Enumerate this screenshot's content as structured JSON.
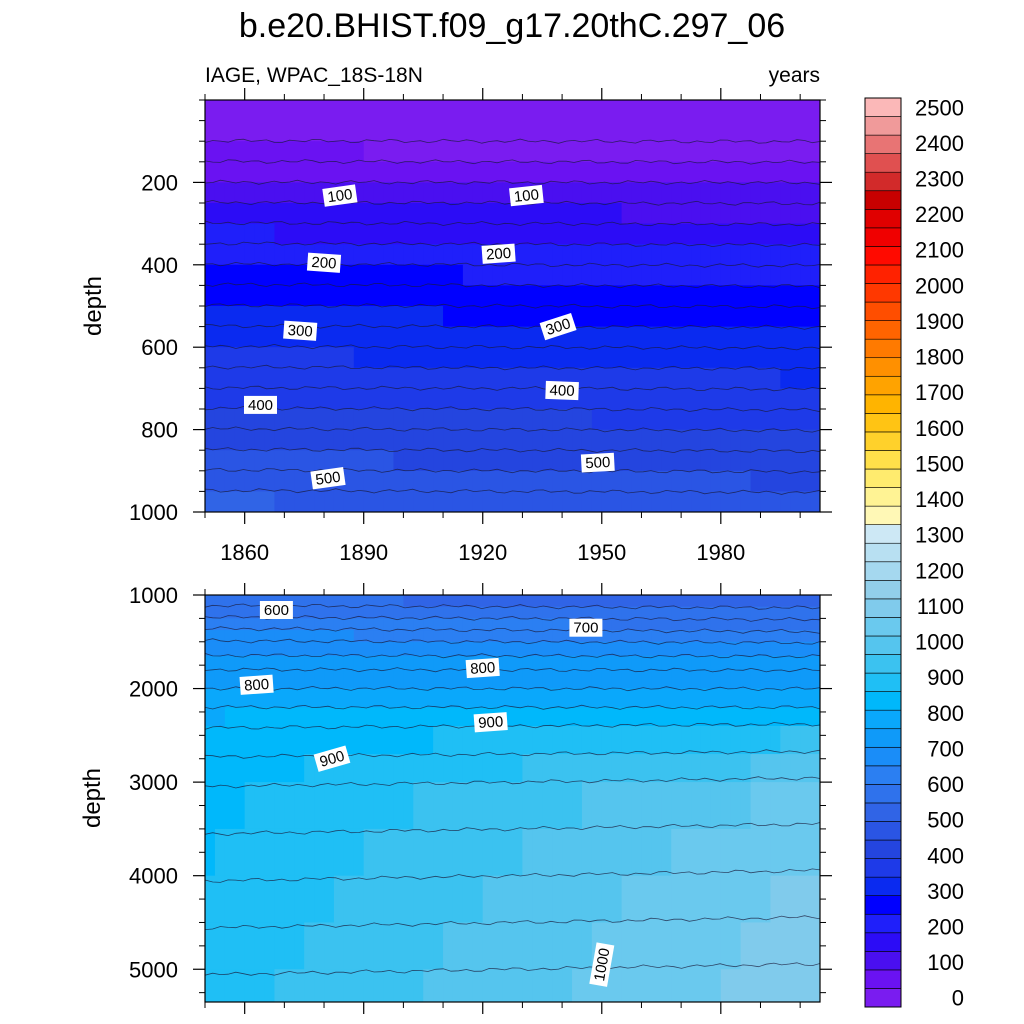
{
  "chart_data": {
    "type": "contour",
    "title": "b.e20.BHIST.f09_g17.20thC.297_06",
    "left_string": "IAGE, WPAC_18S-18N",
    "right_string": "years",
    "ylabel": "depth",
    "x": {
      "range": [
        1850,
        2005
      ],
      "tick_values": [
        1860,
        1890,
        1920,
        1950,
        1980
      ],
      "tick_labels": [
        "1860",
        "1890",
        "1920",
        "1950",
        "1980"
      ]
    },
    "panels": [
      {
        "name": "upper",
        "yrange": [
          0,
          1000
        ],
        "y_ticks": [
          200,
          400,
          600,
          800,
          1000
        ],
        "y_tick_labels": [
          "200",
          "400",
          "600",
          "800",
          "1000"
        ],
        "depth_levels": [
          0,
          100,
          150,
          200,
          250,
          300,
          350,
          400,
          450,
          500,
          550,
          600,
          650,
          700,
          750,
          800,
          850,
          900,
          950,
          1000
        ],
        "age_1850": [
          0,
          35,
          75,
          110,
          150,
          190,
          225,
          255,
          285,
          305,
          330,
          355,
          375,
          395,
          420,
          440,
          460,
          480,
          505,
          525
        ],
        "age_2005": [
          0,
          20,
          60,
          100,
          130,
          160,
          190,
          220,
          250,
          275,
          300,
          320,
          345,
          365,
          385,
          405,
          425,
          445,
          465,
          480
        ],
        "contour_labels": [
          {
            "text": "100",
            "year": 1884,
            "depth": 232,
            "angle": -8
          },
          {
            "text": "100",
            "year": 1931,
            "depth": 232,
            "angle": -6
          },
          {
            "text": "200",
            "year": 1880,
            "depth": 395,
            "angle": 4
          },
          {
            "text": "200",
            "year": 1924,
            "depth": 373,
            "angle": -4
          },
          {
            "text": "300",
            "year": 1874,
            "depth": 560,
            "angle": 4
          },
          {
            "text": "300",
            "year": 1939,
            "depth": 550,
            "angle": -18
          },
          {
            "text": "400",
            "year": 1864,
            "depth": 740,
            "angle": 0
          },
          {
            "text": "400",
            "year": 1940,
            "depth": 705,
            "angle": 2
          },
          {
            "text": "500",
            "year": 1881,
            "depth": 918,
            "angle": -8
          },
          {
            "text": "500",
            "year": 1949,
            "depth": 880,
            "angle": -3
          }
        ]
      },
      {
        "name": "lower",
        "yrange": [
          1000,
          5350
        ],
        "y_ticks": [
          1000,
          2000,
          3000,
          4000,
          5000
        ],
        "y_tick_labels": [
          "1000",
          "2000",
          "3000",
          "4000",
          "5000"
        ],
        "depth_levels": [
          1000,
          1125,
          1250,
          1375,
          1500,
          1650,
          1800,
          2000,
          2200,
          2400,
          2700,
          3000,
          3500,
          4000,
          4500,
          5000,
          5350
        ],
        "age_1850": [
          550,
          595,
          630,
          660,
          690,
          720,
          750,
          780,
          805,
          825,
          840,
          850,
          860,
          870,
          880,
          890,
          895
        ],
        "age_2005": [
          525,
          550,
          580,
          600,
          650,
          700,
          735,
          770,
          800,
          900,
          950,
          1020,
          1060,
          1080,
          1095,
          1105,
          1110
        ],
        "contour_labels": [
          {
            "text": "600",
            "year": 1868,
            "depth": 1160,
            "angle": 0
          },
          {
            "text": "700",
            "year": 1946,
            "depth": 1350,
            "angle": 0
          },
          {
            "text": "800",
            "year": 1863,
            "depth": 1960,
            "angle": -4
          },
          {
            "text": "800",
            "year": 1920,
            "depth": 1780,
            "angle": -4
          },
          {
            "text": "900",
            "year": 1882,
            "depth": 2750,
            "angle": -16
          },
          {
            "text": "900",
            "year": 1922,
            "depth": 2360,
            "angle": -4
          },
          {
            "text": "1000",
            "year": 1950,
            "depth": 4950,
            "angle": -80
          }
        ]
      }
    ],
    "colorbar": {
      "levels": [
        0,
        100,
        200,
        300,
        400,
        500,
        600,
        700,
        800,
        900,
        1000,
        1100,
        1200,
        1300,
        1400,
        1500,
        1600,
        1700,
        1800,
        1900,
        2000,
        2100,
        2200,
        2300,
        2400,
        2500
      ],
      "labels": [
        "0",
        "100",
        "200",
        "300",
        "400",
        "500",
        "600",
        "700",
        "800",
        "900",
        "1000",
        "1100",
        "1200",
        "1300",
        "1400",
        "1500",
        "1600",
        "1700",
        "1800",
        "1900",
        "2000",
        "2100",
        "2200",
        "2300",
        "2400",
        "2500"
      ],
      "colors_bottom_to_top": [
        "#7a1cf0",
        "#6a12f2",
        "#4a0ff0",
        "#2c0cf6",
        "#1f1ffa",
        "#0000ff",
        "#0a2af0",
        "#1e3ae8",
        "#2445df",
        "#2a55e4",
        "#3064e6",
        "#2f72ec",
        "#2b7ff2",
        "#1a8df8",
        "#0f9af9",
        "#0aa8fb",
        "#00b8fb",
        "#1fbff5",
        "#3bc2f0",
        "#55c5ee",
        "#6ac9ee",
        "#80cbec",
        "#92cfea",
        "#a5d8ef",
        "#b8e0f2",
        "#cde8f5",
        "#fff8b6",
        "#fff394",
        "#ffeb6e",
        "#ffe04a",
        "#ffd12b",
        "#ffc414",
        "#ffb400",
        "#ffa300",
        "#ff9000",
        "#ff7a00",
        "#ff6400",
        "#ff4e00",
        "#ff3800",
        "#ff2200",
        "#ff0a00",
        "#f00000",
        "#e00000",
        "#c80000",
        "#d22a2a",
        "#e05050",
        "#e87474",
        "#f09a9a",
        "#fbb8b8"
      ]
    }
  }
}
